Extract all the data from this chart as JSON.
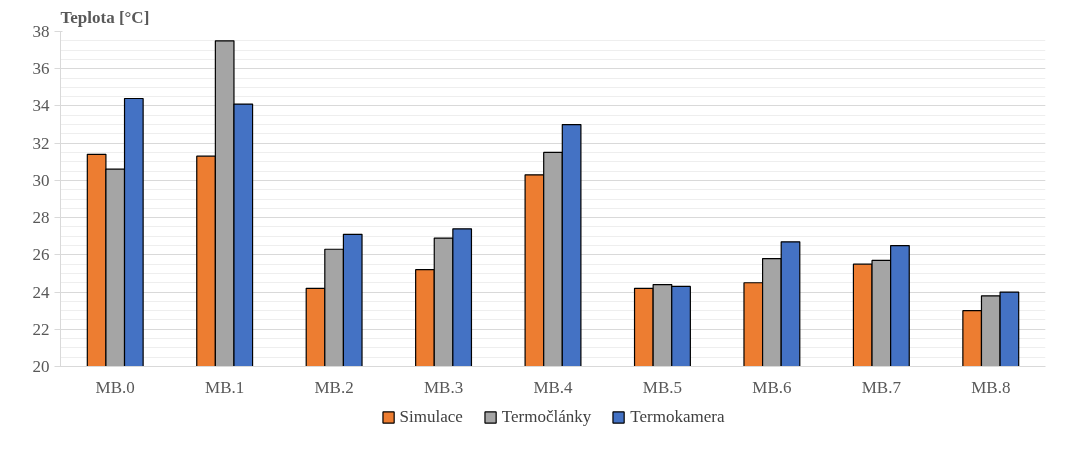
{
  "chart_data": {
    "type": "bar",
    "ylabel": "Teplota [°C]",
    "categories": [
      "MB.0",
      "MB.1",
      "MB.2",
      "MB.3",
      "MB.4",
      "MB.5",
      "MB.6",
      "MB.7",
      "MB.8"
    ],
    "series": [
      {
        "name": "Simulace",
        "color": "#ed7d31",
        "values": [
          31.4,
          31.3,
          24.2,
          25.2,
          30.3,
          24.2,
          24.5,
          25.5,
          23.0
        ]
      },
      {
        "name": "Termočlánky",
        "color": "#a5a5a5",
        "values": [
          30.6,
          37.5,
          26.3,
          26.9,
          31.5,
          24.4,
          25.8,
          25.7,
          23.8
        ]
      },
      {
        "name": "Termokamera",
        "color": "#4472c4",
        "values": [
          34.4,
          34.1,
          27.1,
          27.4,
          33.0,
          24.3,
          26.7,
          26.5,
          24.0
        ]
      }
    ],
    "ylim": [
      20,
      38
    ],
    "yticks": [
      20,
      22,
      24,
      26,
      28,
      30,
      32,
      34,
      36,
      38
    ],
    "grid": "y",
    "legend": "bottom"
  }
}
